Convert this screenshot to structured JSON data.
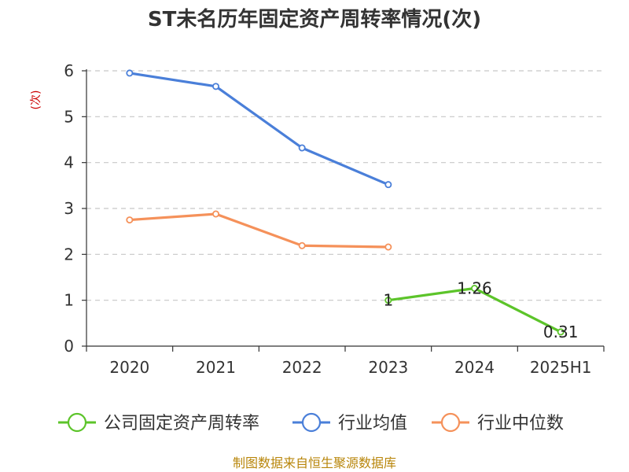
{
  "chart_data": {
    "type": "line",
    "title": "ST未名历年固定资产周转率情况(次)",
    "ylabel": "(次)",
    "xlabel": "",
    "categories": [
      "2020",
      "2021",
      "2022",
      "2023",
      "2024",
      "2025H1"
    ],
    "yticks": [
      "0",
      "1",
      "2",
      "3",
      "4",
      "5",
      "6"
    ],
    "ylim": [
      0,
      6
    ],
    "grid": true,
    "legend_position": "bottom",
    "series": [
      {
        "name": "公司固定资产周转率",
        "color": "#5cc42a",
        "values": [
          null,
          null,
          null,
          1,
          1.26,
          0.31
        ],
        "labels": [
          "",
          "",
          "",
          "1",
          "1.26",
          "0.31"
        ]
      },
      {
        "name": "行业均值",
        "color": "#4a7fd9",
        "values": [
          5.95,
          5.66,
          4.32,
          3.52,
          null,
          null
        ]
      },
      {
        "name": "行业中位数",
        "color": "#f5915a",
        "values": [
          2.75,
          2.88,
          2.19,
          2.16,
          null,
          null
        ]
      }
    ]
  },
  "footer": {
    "source": "制图数据来自恒生聚源数据库"
  }
}
